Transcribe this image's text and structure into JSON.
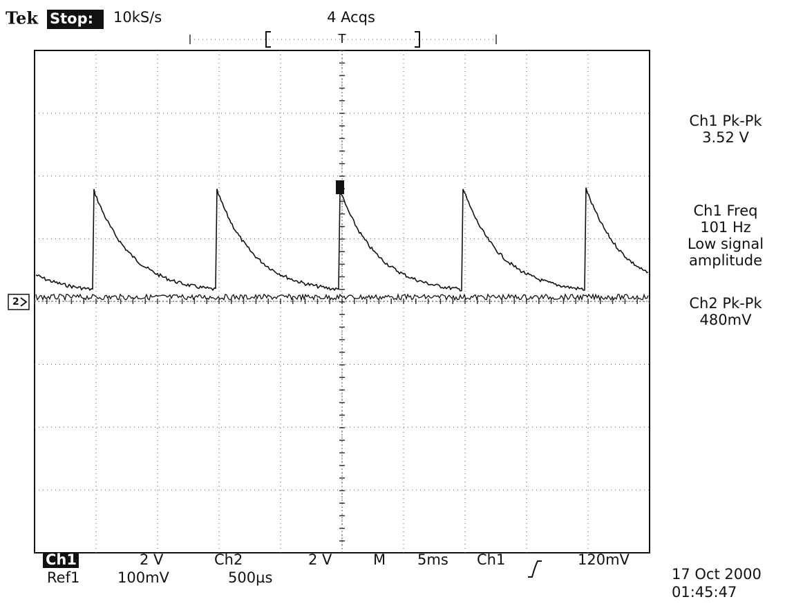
{
  "header": {
    "brand": "Tek",
    "status": "Stop:",
    "sample_rate": "10kS/s",
    "acquisitions": "4 Acqs",
    "trigger_marker": "T"
  },
  "channel_marker": "2",
  "measurements": [
    {
      "label": "Ch1 Pk-Pk",
      "lines": [
        "3.52 V"
      ]
    },
    {
      "label": "Ch1 Freq",
      "lines": [
        "101 Hz",
        "Low signal",
        "amplitude"
      ]
    },
    {
      "label": "Ch2 Pk-Pk",
      "lines": [
        "480mV"
      ]
    }
  ],
  "footer": {
    "row1": [
      "Ch1",
      "2 V",
      "Ch2",
      "2 V",
      "M",
      "5ms",
      "Ch1",
      "120mV"
    ],
    "row2": [
      "Ref1",
      "100mV",
      "500µs"
    ],
    "date": "17 Oct 2000",
    "time": "01:45:47"
  }
}
